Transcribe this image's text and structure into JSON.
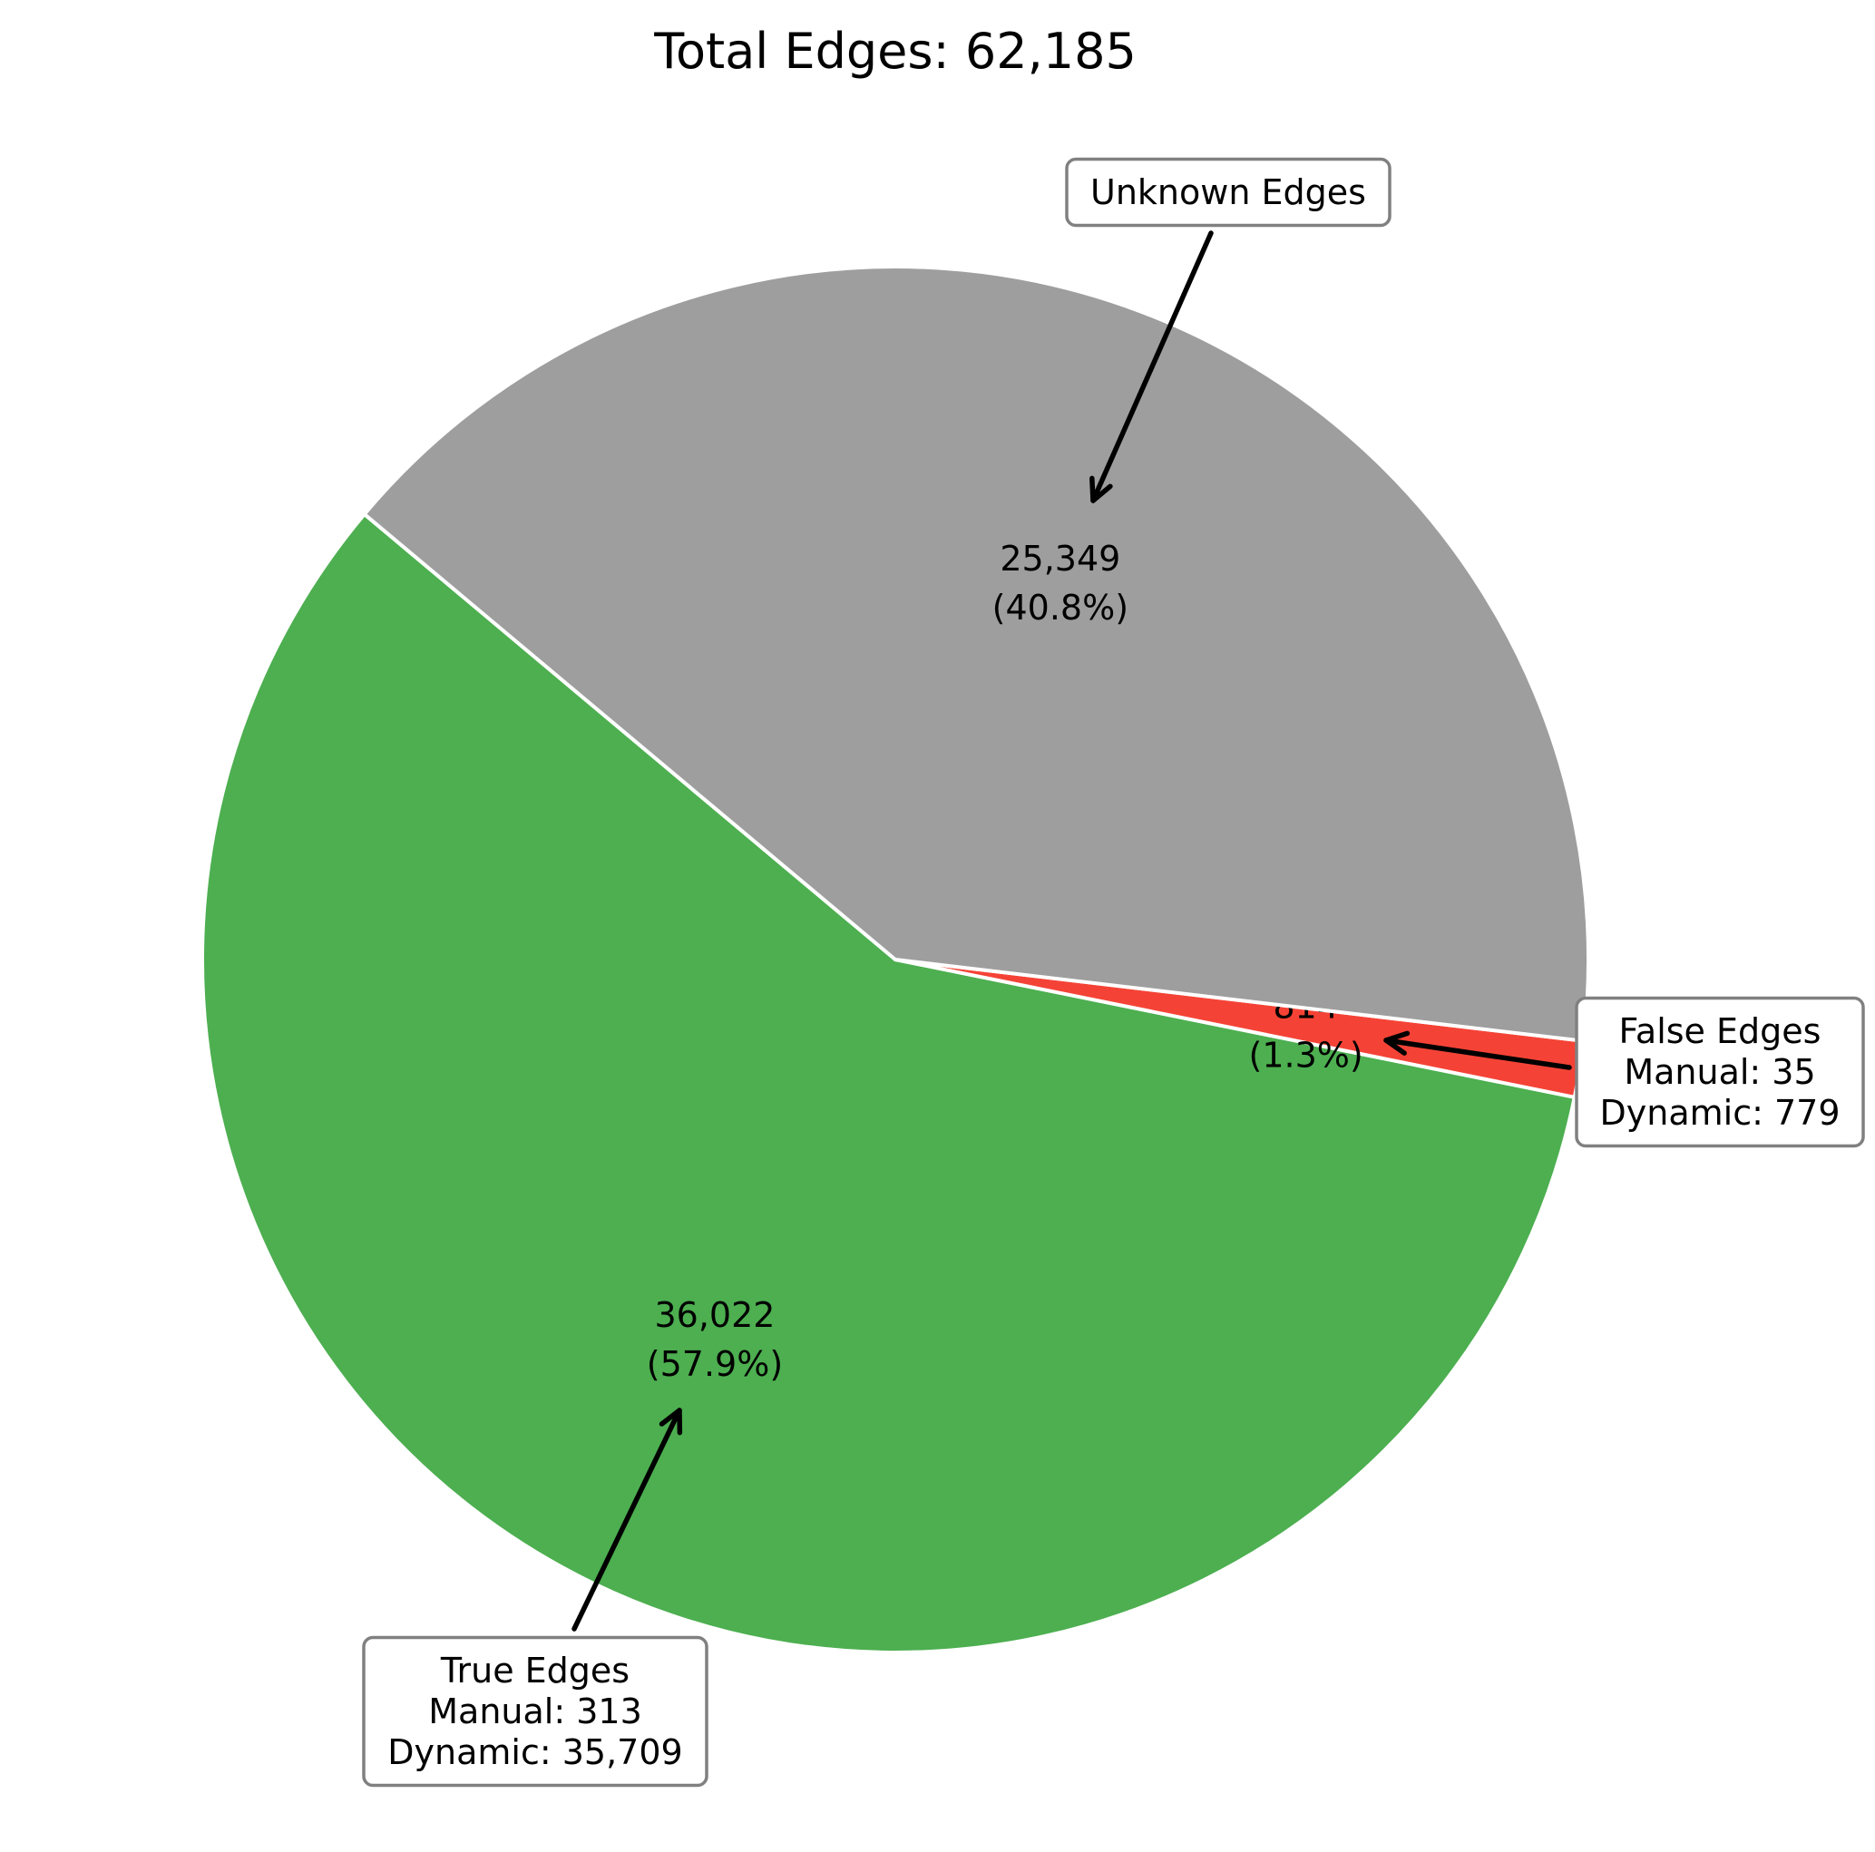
{
  "chart_data": {
    "type": "pie",
    "title": "Total Edges: 62,185",
    "slices": [
      {
        "name": "True Edges",
        "value": 36022,
        "value_label": "36,022",
        "pct_label": "(57.9%)",
        "color": "#4daf50",
        "annotation": [
          "True Edges",
          "Manual: 313",
          "Dynamic: 35,709"
        ]
      },
      {
        "name": "False Edges",
        "value": 814,
        "value_label": "814",
        "pct_label": "(1.3%)",
        "color": "#f44336",
        "annotation": [
          "False Edges",
          "Manual: 35",
          "Dynamic: 779"
        ]
      },
      {
        "name": "Unknown Edges",
        "value": 25349,
        "value_label": "25,349",
        "pct_label": "(40.8%)",
        "color": "#9e9e9e",
        "annotation": [
          "Unknown Edges"
        ]
      }
    ]
  }
}
